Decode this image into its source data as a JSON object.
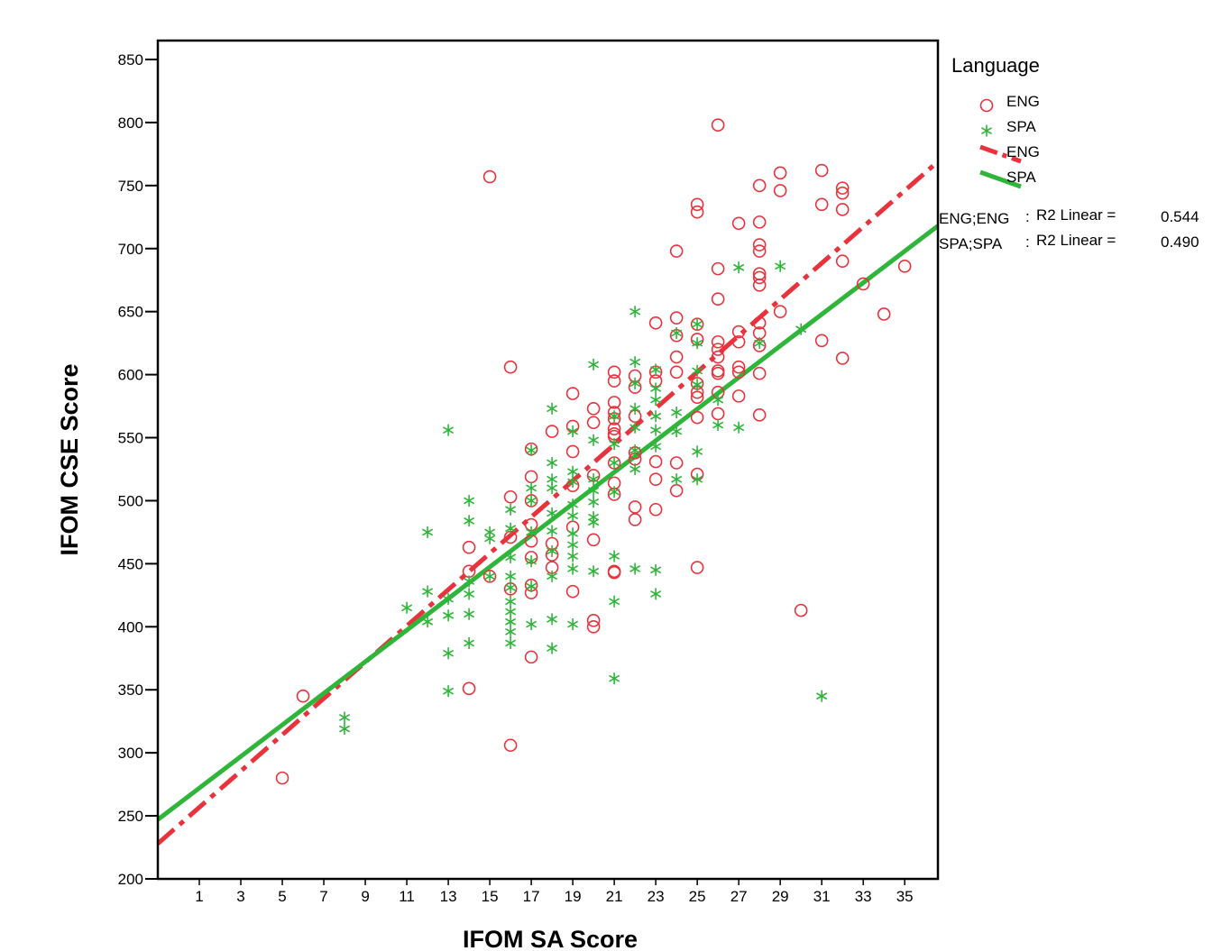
{
  "chart_data": {
    "type": "scatter",
    "title": "",
    "xlabel": "IFOM SA Score",
    "ylabel": "IFOM CSE Score",
    "xlim": [
      -1,
      36.6
    ],
    "ylim": [
      200,
      865
    ],
    "x_ticks": [
      1,
      3,
      5,
      7,
      9,
      11,
      13,
      15,
      17,
      19,
      21,
      23,
      25,
      27,
      29,
      31,
      33,
      35
    ],
    "y_ticks": [
      200,
      250,
      300,
      350,
      400,
      450,
      500,
      550,
      600,
      650,
      700,
      750,
      800,
      850
    ],
    "grid": false,
    "legend": {
      "title": "Language",
      "position": "right",
      "entries": [
        {
          "label": "ENG",
          "kind": "marker",
          "marker": "circle",
          "color": "#e8323c"
        },
        {
          "label": "SPA",
          "kind": "marker",
          "marker": "star",
          "color": "#2fb53a"
        },
        {
          "label": "ENG",
          "kind": "line",
          "style": "dash-dot",
          "color": "#e8323c"
        },
        {
          "label": "SPA",
          "kind": "line",
          "style": "solid",
          "color": "#2fb53a"
        }
      ]
    },
    "fit_annotations": [
      {
        "group": "ENG;ENG",
        "label": "R2 Linear =",
        "value": "0.544",
        "color": "#e8323c"
      },
      {
        "group": "SPA;SPA",
        "label": "R2 Linear =",
        "value": "0.490",
        "color": "#2fb53a"
      }
    ],
    "fit_lines": [
      {
        "name": "ENG",
        "style": "dash-dot",
        "color": "#e8323c",
        "points": [
          [
            -1,
            228
          ],
          [
            36.6,
            769
          ]
        ]
      },
      {
        "name": "SPA",
        "style": "solid",
        "color": "#2fb53a",
        "points": [
          [
            -1,
            247
          ],
          [
            36.6,
            718
          ]
        ]
      }
    ],
    "series": [
      {
        "name": "ENG",
        "marker": "circle",
        "color": "#e8323c",
        "points": [
          [
            5,
            280
          ],
          [
            6,
            345
          ],
          [
            14,
            351
          ],
          [
            14,
            463
          ],
          [
            14,
            444
          ],
          [
            15,
            440
          ],
          [
            15,
            757
          ],
          [
            16,
            306
          ],
          [
            16,
            503
          ],
          [
            16,
            471
          ],
          [
            16,
            430
          ],
          [
            16,
            606
          ],
          [
            17,
            376
          ],
          [
            17,
            541
          ],
          [
            17,
            519
          ],
          [
            17,
            500
          ],
          [
            17,
            481
          ],
          [
            17,
            468
          ],
          [
            17,
            455
          ],
          [
            17,
            433
          ],
          [
            17,
            427
          ],
          [
            18,
            555
          ],
          [
            18,
            466
          ],
          [
            18,
            457
          ],
          [
            18,
            447
          ],
          [
            19,
            585
          ],
          [
            19,
            559
          ],
          [
            19,
            539
          ],
          [
            19,
            512
          ],
          [
            19,
            479
          ],
          [
            19,
            428
          ],
          [
            20,
            573
          ],
          [
            20,
            562
          ],
          [
            20,
            520
          ],
          [
            20,
            469
          ],
          [
            20,
            405
          ],
          [
            20,
            400
          ],
          [
            21,
            602
          ],
          [
            21,
            595
          ],
          [
            21,
            578
          ],
          [
            21,
            570
          ],
          [
            21,
            565
          ],
          [
            21,
            557
          ],
          [
            21,
            553
          ],
          [
            21,
            551
          ],
          [
            21,
            530
          ],
          [
            21,
            514
          ],
          [
            21,
            505
          ],
          [
            21,
            444
          ],
          [
            21,
            443
          ],
          [
            22,
            599
          ],
          [
            22,
            590
          ],
          [
            22,
            567
          ],
          [
            22,
            538
          ],
          [
            22,
            533
          ],
          [
            22,
            495
          ],
          [
            22,
            485
          ],
          [
            23,
            641
          ],
          [
            23,
            602
          ],
          [
            23,
            595
          ],
          [
            23,
            531
          ],
          [
            23,
            517
          ],
          [
            23,
            493
          ],
          [
            24,
            698
          ],
          [
            24,
            645
          ],
          [
            24,
            631
          ],
          [
            24,
            614
          ],
          [
            24,
            602
          ],
          [
            24,
            530
          ],
          [
            24,
            508
          ],
          [
            25,
            735
          ],
          [
            25,
            729
          ],
          [
            25,
            640
          ],
          [
            25,
            628
          ],
          [
            25,
            593
          ],
          [
            25,
            586
          ],
          [
            25,
            582
          ],
          [
            25,
            566
          ],
          [
            25,
            521
          ],
          [
            25,
            447
          ],
          [
            26,
            798
          ],
          [
            26,
            684
          ],
          [
            26,
            660
          ],
          [
            26,
            626
          ],
          [
            26,
            620
          ],
          [
            26,
            614
          ],
          [
            26,
            603
          ],
          [
            26,
            601
          ],
          [
            26,
            586
          ],
          [
            26,
            569
          ],
          [
            27,
            720
          ],
          [
            27,
            634
          ],
          [
            27,
            626
          ],
          [
            27,
            606
          ],
          [
            27,
            602
          ],
          [
            27,
            583
          ],
          [
            28,
            750
          ],
          [
            28,
            721
          ],
          [
            28,
            703
          ],
          [
            28,
            698
          ],
          [
            28,
            680
          ],
          [
            28,
            677
          ],
          [
            28,
            671
          ],
          [
            28,
            641
          ],
          [
            28,
            633
          ],
          [
            28,
            623
          ],
          [
            28,
            601
          ],
          [
            28,
            568
          ],
          [
            29,
            760
          ],
          [
            29,
            746
          ],
          [
            29,
            650
          ],
          [
            30,
            413
          ],
          [
            31,
            762
          ],
          [
            31,
            735
          ],
          [
            31,
            627
          ],
          [
            32,
            748
          ],
          [
            32,
            744
          ],
          [
            32,
            731
          ],
          [
            32,
            690
          ],
          [
            32,
            613
          ],
          [
            33,
            672
          ],
          [
            34,
            648
          ],
          [
            35,
            686
          ]
        ]
      },
      {
        "name": "SPA",
        "marker": "star",
        "color": "#2fb53a",
        "points": [
          [
            8,
            328
          ],
          [
            8,
            319
          ],
          [
            11,
            415
          ],
          [
            12,
            475
          ],
          [
            12,
            428
          ],
          [
            12,
            404
          ],
          [
            13,
            556
          ],
          [
            13,
            422
          ],
          [
            13,
            409
          ],
          [
            13,
            379
          ],
          [
            13,
            349
          ],
          [
            14,
            500
          ],
          [
            14,
            484
          ],
          [
            14,
            436
          ],
          [
            14,
            426
          ],
          [
            14,
            410
          ],
          [
            14,
            387
          ],
          [
            15,
            475
          ],
          [
            15,
            470
          ],
          [
            15,
            440
          ],
          [
            16,
            493
          ],
          [
            16,
            478
          ],
          [
            16,
            455
          ],
          [
            16,
            440
          ],
          [
            16,
            431
          ],
          [
            16,
            420
          ],
          [
            16,
            412
          ],
          [
            16,
            404
          ],
          [
            16,
            396
          ],
          [
            16,
            387
          ],
          [
            17,
            540
          ],
          [
            17,
            510
          ],
          [
            17,
            500
          ],
          [
            17,
            475
          ],
          [
            17,
            452
          ],
          [
            17,
            432
          ],
          [
            17,
            402
          ],
          [
            18,
            573
          ],
          [
            18,
            530
          ],
          [
            18,
            517
          ],
          [
            18,
            510
          ],
          [
            18,
            490
          ],
          [
            18,
            476
          ],
          [
            18,
            460
          ],
          [
            18,
            440
          ],
          [
            18,
            406
          ],
          [
            18,
            383
          ],
          [
            19,
            555
          ],
          [
            19,
            523
          ],
          [
            19,
            515
          ],
          [
            19,
            497
          ],
          [
            19,
            488
          ],
          [
            19,
            474
          ],
          [
            19,
            465
          ],
          [
            19,
            456
          ],
          [
            19,
            446
          ],
          [
            19,
            402
          ],
          [
            20,
            608
          ],
          [
            20,
            548
          ],
          [
            20,
            517
          ],
          [
            20,
            508
          ],
          [
            20,
            499
          ],
          [
            20,
            487
          ],
          [
            20,
            483
          ],
          [
            20,
            444
          ],
          [
            21,
            567
          ],
          [
            21,
            545
          ],
          [
            21,
            530
          ],
          [
            21,
            507
          ],
          [
            21,
            456
          ],
          [
            21,
            420
          ],
          [
            21,
            359
          ],
          [
            22,
            650
          ],
          [
            22,
            610
          ],
          [
            22,
            593
          ],
          [
            22,
            573
          ],
          [
            22,
            558
          ],
          [
            22,
            540
          ],
          [
            22,
            525
          ],
          [
            22,
            446
          ],
          [
            23,
            604
          ],
          [
            23,
            589
          ],
          [
            23,
            580
          ],
          [
            23,
            567
          ],
          [
            23,
            556
          ],
          [
            23,
            543
          ],
          [
            23,
            445
          ],
          [
            23,
            426
          ],
          [
            24,
            633
          ],
          [
            24,
            570
          ],
          [
            24,
            555
          ],
          [
            24,
            517
          ],
          [
            25,
            640
          ],
          [
            25,
            625
          ],
          [
            25,
            603
          ],
          [
            25,
            592
          ],
          [
            25,
            539
          ],
          [
            25,
            517
          ],
          [
            26,
            580
          ],
          [
            26,
            560
          ],
          [
            27,
            685
          ],
          [
            27,
            558
          ],
          [
            28,
            625
          ],
          [
            29,
            686
          ],
          [
            30,
            636
          ],
          [
            31,
            345
          ]
        ]
      }
    ]
  }
}
